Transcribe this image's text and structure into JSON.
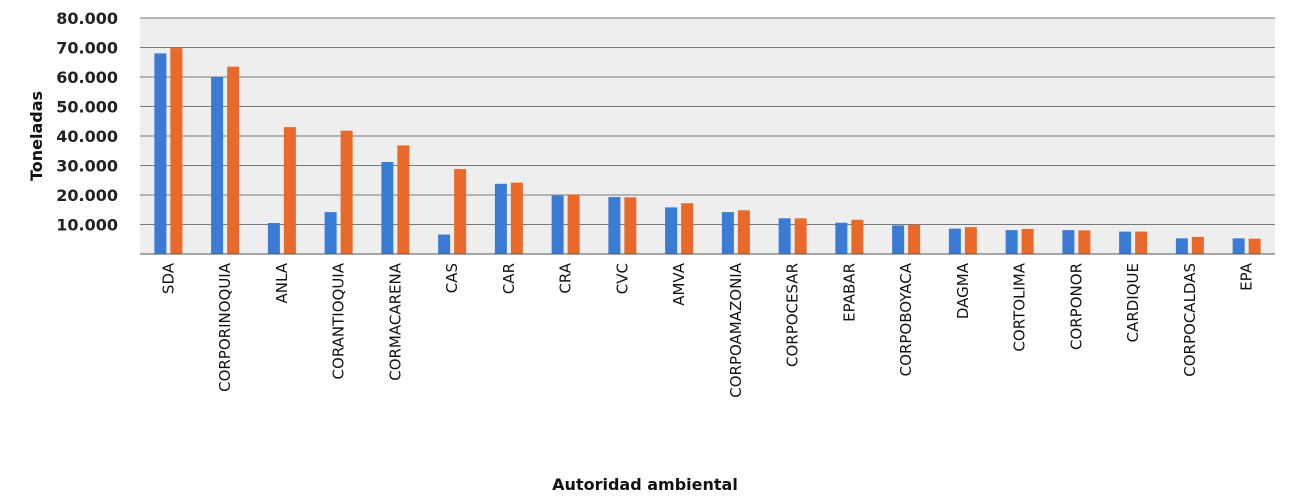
{
  "chart_data": {
    "type": "bar",
    "xlabel": "Autoridad ambiental",
    "ylabel": "Toneladas",
    "ylim": [
      0,
      80000
    ],
    "yticks": [
      "10.000",
      "20.000",
      "30.000",
      "40.000",
      "50.000",
      "60.000",
      "70.000",
      "80.000"
    ],
    "ytick_values": [
      10000,
      20000,
      30000,
      40000,
      50000,
      60000,
      70000,
      80000
    ],
    "grid": true,
    "categories": [
      "SDA",
      "CORPORINOQUIA",
      "ANLA",
      "CORANTIOQUIA",
      "CORMACARENA",
      "CAS",
      "CAR",
      "CRA",
      "CVC",
      "AMVA",
      "CORPOAMAZONIA",
      "CORPOCESAR",
      "EPABAR",
      "CORPOBOYACA",
      "DAGMA",
      "CORTOLIMA",
      "CORPONOR",
      "CARDIQUE",
      "CORPOCALDAS",
      "EPA"
    ],
    "series": [
      {
        "color": "#3a7bd5",
        "values": [
          68000,
          60000,
          10500,
          14200,
          31200,
          6600,
          23800,
          19800,
          19300,
          15800,
          14200,
          12100,
          10600,
          9700,
          8600,
          8100,
          8100,
          7600,
          5300,
          5300
        ]
      },
      {
        "color": "#e8692a",
        "values": [
          69800,
          63500,
          43000,
          41800,
          36800,
          28800,
          24200,
          20200,
          19200,
          17200,
          14800,
          12100,
          11600,
          9900,
          9100,
          8500,
          8000,
          7600,
          5800,
          5200
        ]
      }
    ]
  }
}
